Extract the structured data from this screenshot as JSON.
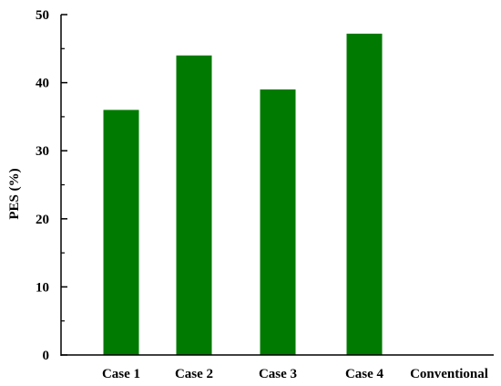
{
  "chart_data": {
    "type": "bar",
    "categories": [
      "Case 1",
      "Case 2",
      "Case 3",
      "Case 4",
      "Conventional"
    ],
    "values": [
      36,
      44,
      39,
      47.2,
      0
    ],
    "xlabel": "",
    "ylabel": "PES (%)",
    "ylim": [
      0,
      50
    ],
    "yticks": [
      "0",
      "10",
      "20",
      "30",
      "40",
      "50"
    ],
    "grid": false,
    "legend": "none",
    "bar_color": "#007a00",
    "axis_color": "#000000"
  }
}
